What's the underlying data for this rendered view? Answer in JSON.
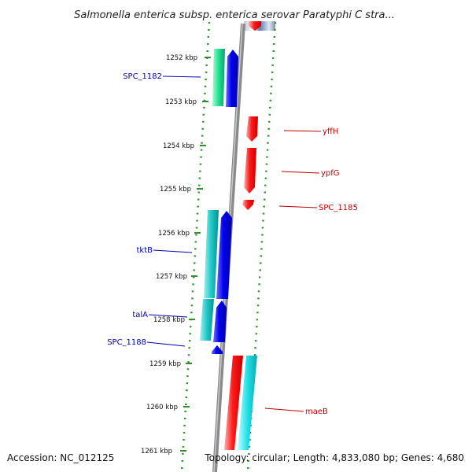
{
  "title": "Salmonella enterica subsp. enterica serovar Paratyphi C stra...",
  "footer": {
    "accession": "Accession: NC_012125",
    "topology": "Topology: circular; Length: 4,833,080 bp; Genes: 4,680"
  },
  "colors": {
    "backbone": "#8a8a8a",
    "dotted_ring": "#2f8f2f",
    "forward_label": "#c00000",
    "reverse_label": "#0000b0",
    "red_gene": "#ff1010",
    "blue_gene": "#0000ee",
    "cyan_gene": "#10c8c8",
    "green_gene": "#20e090",
    "light_cyan_gene": "#20e0e8"
  },
  "ticks": [
    "1252 kbp",
    "1253 kbp",
    "1254 kbp",
    "1255 kbp",
    "1256 kbp",
    "1257 kbp",
    "1258 kbp",
    "1259 kbp",
    "1260 kbp",
    "1261 kbp"
  ],
  "labels": {
    "left": [
      "SPC_1182",
      "tktB",
      "talA",
      "SPC_1188"
    ],
    "right": [
      "yffH",
      "ypfG",
      "SPC_1185",
      "maeB"
    ]
  }
}
